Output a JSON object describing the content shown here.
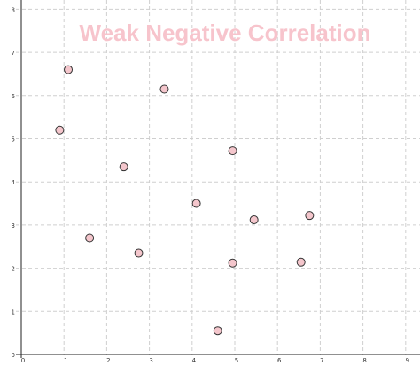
{
  "chart_data": {
    "type": "scatter",
    "title": "Weak Negative Correlation",
    "xlabel": "",
    "ylabel": "",
    "xlim": [
      0,
      9
    ],
    "ylim": [
      0,
      8
    ],
    "x_ticks": [
      "0",
      "1",
      "2",
      "3",
      "4",
      "5",
      "6",
      "7",
      "8",
      "9"
    ],
    "y_ticks": [
      "0",
      "1",
      "2",
      "3",
      "4",
      "5",
      "6",
      "7",
      "8"
    ],
    "grid": true,
    "series": [
      {
        "x": [
          0.9,
          1.1,
          1.6,
          2.4,
          2.75,
          3.35,
          4.1,
          4.6,
          4.95,
          4.95,
          5.45,
          6.55,
          6.75
        ],
        "y": [
          5.2,
          6.6,
          2.7,
          4.35,
          2.35,
          6.15,
          3.5,
          0.55,
          4.72,
          2.12,
          3.12,
          2.14,
          3.22
        ]
      }
    ]
  },
  "colors": {
    "title": "#f7c4cc",
    "point_fill": "#f4c6cc",
    "point_stroke": "#333333",
    "grid": "#cfcfcf",
    "axis": "#222222"
  }
}
